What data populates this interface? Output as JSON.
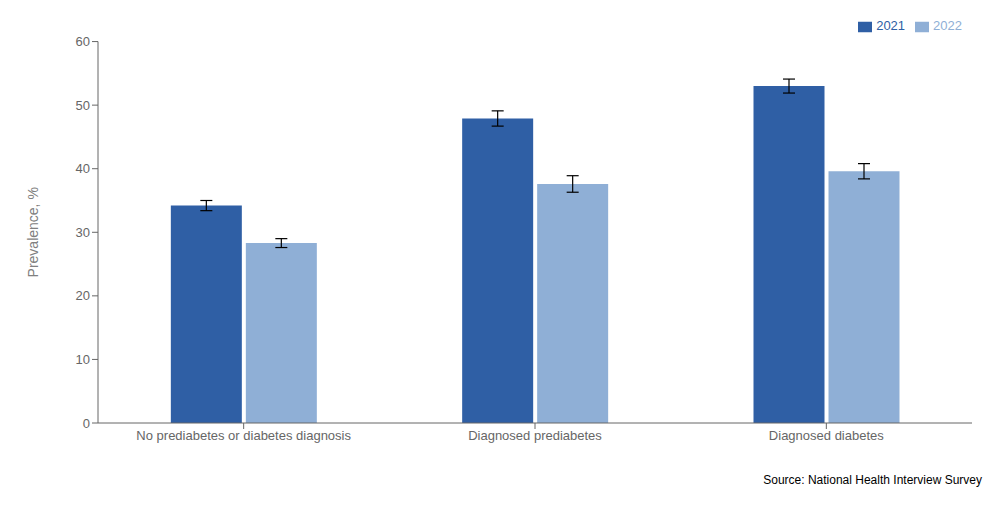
{
  "chart_data": {
    "type": "bar",
    "categories": [
      "No prediabetes or diabetes diagnosis",
      "Diagnosed prediabetes",
      "Diagnosed diabetes"
    ],
    "series": [
      {
        "name": "2021",
        "color": "#2F5FA5",
        "values": [
          34.2,
          47.9,
          53.0
        ],
        "errors": [
          0.8,
          1.2,
          1.1
        ]
      },
      {
        "name": "2022",
        "color": "#8FAFD6",
        "values": [
          28.3,
          37.6,
          39.6
        ],
        "errors": [
          0.7,
          1.3,
          1.2
        ]
      }
    ],
    "ylim": [
      0,
      60
    ],
    "yticks": [
      0,
      10,
      20,
      30,
      40,
      50,
      60
    ],
    "ylabel": "Prevalence, %",
    "legend": "upper right",
    "grid": false,
    "annotation": "Source: National Health Interview Survey"
  }
}
